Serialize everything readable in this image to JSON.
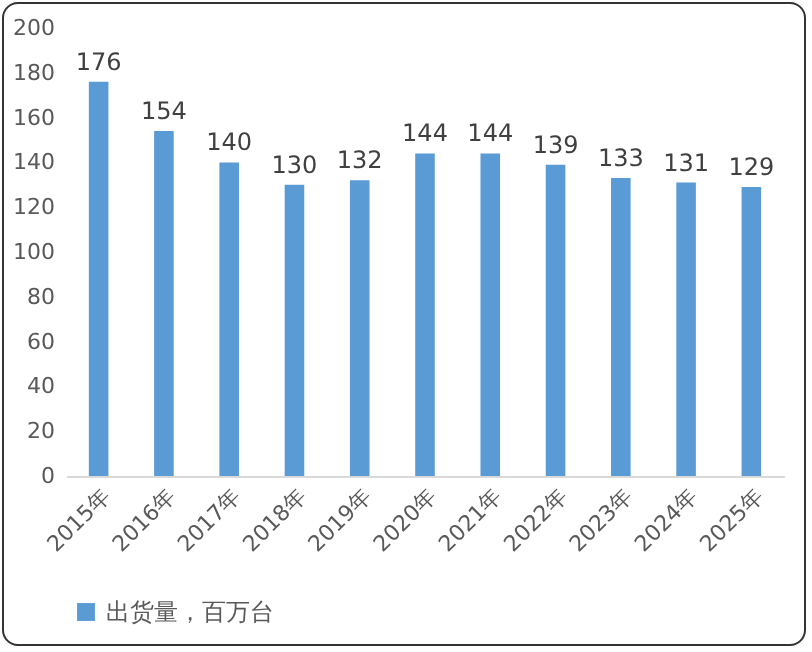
{
  "chart_data": {
    "type": "bar",
    "categories": [
      "2015年",
      "2016年",
      "2017年",
      "2018年",
      "2019年",
      "2020年",
      "2021年",
      "2022年",
      "2023年",
      "2024年",
      "2025年"
    ],
    "series": [
      {
        "name": "出货量，百万台",
        "color": "#5b9bd5",
        "values": [
          176,
          154,
          140,
          130,
          132,
          144,
          144,
          139,
          133,
          131,
          129
        ]
      }
    ],
    "ylim": [
      0,
      200
    ],
    "yticks": [
      0,
      20,
      40,
      60,
      80,
      100,
      120,
      140,
      160,
      180,
      200
    ],
    "data_labels": true,
    "grid": false,
    "legend": "bottom"
  }
}
